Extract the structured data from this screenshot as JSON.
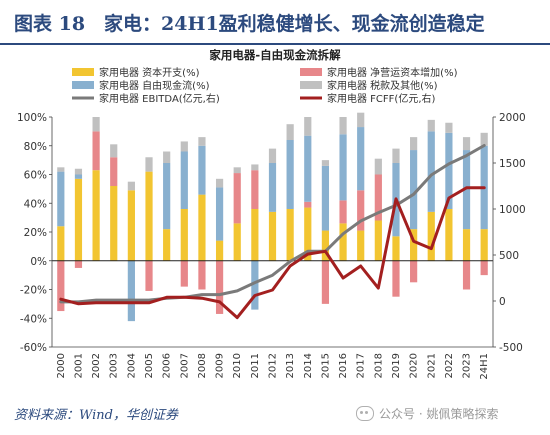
{
  "header": {
    "title": "图表 18　家电：24H1盈利稳健增长、现金流创造稳定"
  },
  "footer": {
    "source": "资料来源：Wind，华创证券",
    "watermark": "公众号 · 姚佩策略探索"
  },
  "colors": {
    "capex": "#f2c531",
    "nwc": "#e7878a",
    "fcf_share": "#89b0cf",
    "tax_other": "#c0c0c0",
    "ebitda": "#7a7a7a",
    "fcff": "#a31f1f",
    "title_blue": "#2c4a7e"
  },
  "chart_data": {
    "type": "bar",
    "title": "家用电器-自由现金流拆解",
    "categories": [
      "2000",
      "2001",
      "2002",
      "2003",
      "2004",
      "2005",
      "2006",
      "2007",
      "2008",
      "2009",
      "2010",
      "2011",
      "2012",
      "2013",
      "2014",
      "2015",
      "2016",
      "2017",
      "2018",
      "2019",
      "2020",
      "2021",
      "2022",
      "2023",
      "24H1"
    ],
    "y_left": {
      "min": -60,
      "max": 100,
      "step": 20,
      "format": "percent"
    },
    "y_right": {
      "min": -500,
      "max": 2000,
      "step": 500
    },
    "legend_position": "top",
    "grid": false,
    "series": [
      {
        "name": "家用电器 资本开支(%)",
        "type": "bar",
        "axis": "left",
        "values": [
          24,
          57,
          63,
          52,
          49,
          62,
          22,
          36,
          46,
          14,
          26,
          36,
          34,
          36,
          37,
          21,
          26,
          21,
          28,
          17,
          22,
          34,
          36,
          22,
          22
        ]
      },
      {
        "name": "家用电器 净营运资本增加(%)",
        "type": "bar",
        "axis": "left",
        "values": [
          -35,
          -5,
          27,
          20,
          0,
          -21,
          0,
          -18,
          -20,
          -37,
          35,
          27,
          0,
          0,
          4,
          -30,
          16,
          28,
          32,
          -25,
          -15,
          0,
          0,
          -20,
          -10
        ]
      },
      {
        "name": "家用电器 自由现金流(%)",
        "type": "bar",
        "axis": "left",
        "values": [
          38,
          3,
          0,
          0,
          -42,
          0,
          46,
          40,
          34,
          37,
          0,
          -34,
          34,
          48,
          46,
          45,
          46,
          44,
          0,
          51,
          55,
          56,
          53,
          55,
          58
        ]
      },
      {
        "name": "家用电器 税款及其他(%)",
        "type": "bar",
        "axis": "left",
        "values": [
          3,
          4,
          10,
          9,
          6,
          10,
          8,
          7,
          6,
          6,
          4,
          4,
          10,
          11,
          13,
          4,
          12,
          10,
          11,
          10,
          9,
          8,
          7,
          9,
          9
        ]
      },
      {
        "name": "家用电器 EBITDA(亿元,右)",
        "type": "line",
        "axis": "right",
        "values": [
          -10,
          -10,
          10,
          10,
          10,
          10,
          30,
          40,
          70,
          70,
          110,
          200,
          280,
          430,
          540,
          540,
          730,
          870,
          960,
          1040,
          1160,
          1370,
          1490,
          1580,
          1690
        ]
      },
      {
        "name": "家用电器 FCFF(亿元,右)",
        "type": "line",
        "axis": "right",
        "values": [
          20,
          -30,
          -20,
          -20,
          -20,
          -20,
          40,
          40,
          30,
          -10,
          -180,
          60,
          120,
          380,
          510,
          540,
          250,
          380,
          140,
          1110,
          650,
          570,
          1120,
          1230,
          1230
        ]
      }
    ]
  }
}
